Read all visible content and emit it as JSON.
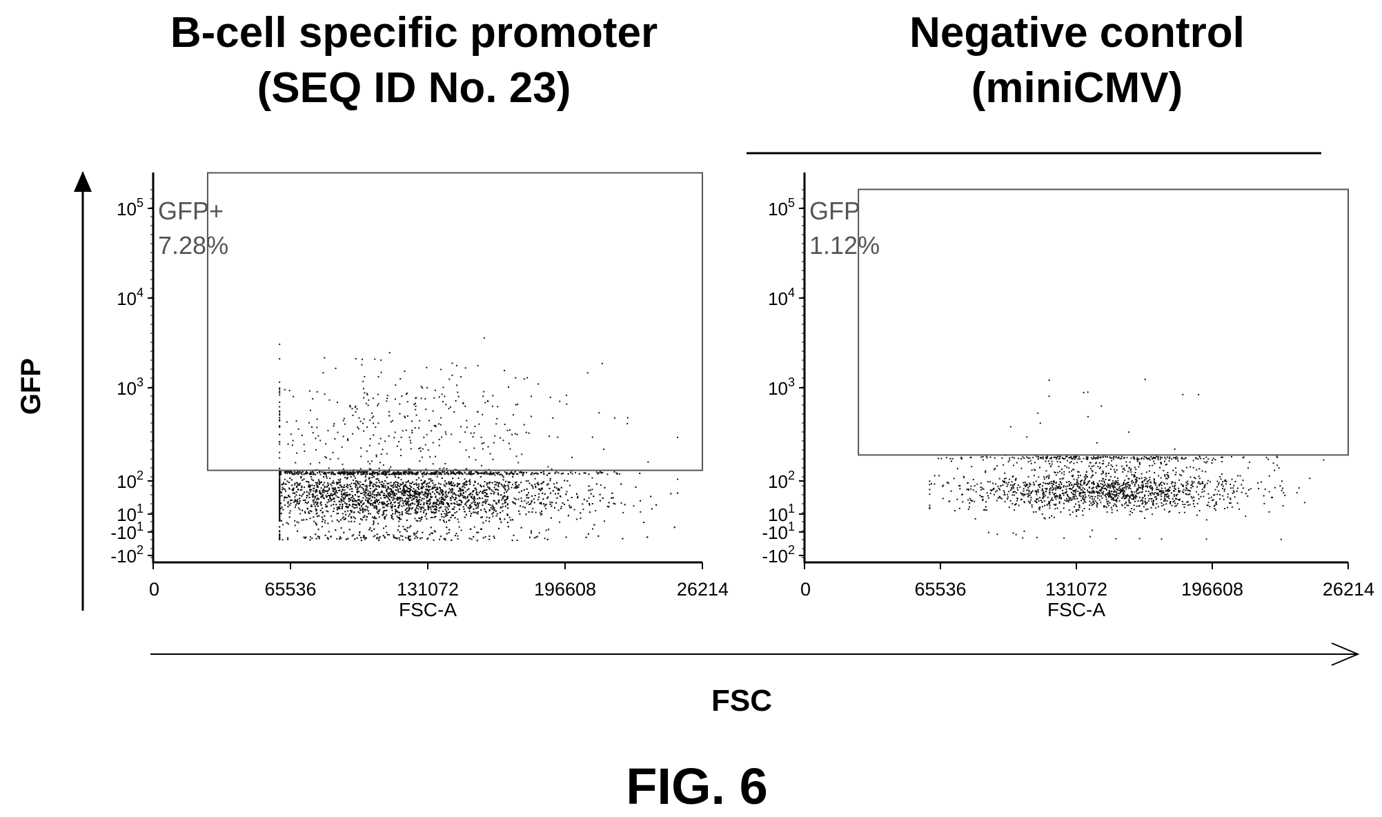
{
  "figure_label": "FIG. 6",
  "shared_axes": {
    "y_label": "GFP",
    "x_label": "FSC"
  },
  "panels": [
    {
      "title_line1": "B-cell specific promoter",
      "title_line2": "(SEQ ID No. 23)",
      "gate_label": "GFP+",
      "gate_percent": "7.28%",
      "x_axis_label": "FSC-A",
      "y_ticks": [
        {
          "base": "10",
          "exp": "5"
        },
        {
          "base": "10",
          "exp": "4"
        },
        {
          "base": "10",
          "exp": "3"
        },
        {
          "base": "10",
          "exp": "2"
        },
        {
          "base": "10",
          "exp": "1"
        },
        {
          "base": "-10",
          "exp": "1"
        },
        {
          "base": "-10",
          "exp": "2"
        }
      ],
      "x_ticks": [
        "0",
        "65536",
        "131072",
        "196608",
        "26214"
      ]
    },
    {
      "title_line1": "Negative control",
      "title_line2": "(miniCMV)",
      "gate_label": "GFP",
      "gate_percent": "1.12%",
      "x_axis_label": "FSC-A",
      "y_ticks": [
        {
          "base": "10",
          "exp": "5"
        },
        {
          "base": "10",
          "exp": "4"
        },
        {
          "base": "10",
          "exp": "3"
        },
        {
          "base": "10",
          "exp": "2"
        },
        {
          "base": "10",
          "exp": "1"
        },
        {
          "base": "-10",
          "exp": "1"
        },
        {
          "base": "-10",
          "exp": "2"
        }
      ],
      "x_ticks": [
        "0",
        "65536",
        "131072",
        "196608",
        "26214"
      ]
    }
  ],
  "chart_data": [
    {
      "type": "scatter",
      "title": "B-cell specific promoter (SEQ ID No. 23)",
      "xlabel": "FSC-A",
      "ylabel": "GFP",
      "xlim": [
        0,
        262144
      ],
      "y_scale": "biexponential",
      "gate": {
        "name": "GFP+",
        "percent": 7.28,
        "x_min": 26000,
        "y_min": 130,
        "x_max": 262144,
        "y_max": 270000
      },
      "population": {
        "events": 5200,
        "fsc_center": 115000,
        "fsc_sd": 42000,
        "gfp_center": 45,
        "gfp_decades_sd": 0.5,
        "gfp_positive_fraction": 0.0728,
        "gfp_positive_peak": 400
      }
    },
    {
      "type": "scatter",
      "title": "Negative control (miniCMV)",
      "xlabel": "FSC-A",
      "ylabel": "GFP",
      "xlim": [
        0,
        262144
      ],
      "y_scale": "biexponential",
      "gate": {
        "name": "GFP",
        "percent": 1.12,
        "x_min": 26000,
        "y_min": 190,
        "x_max": 262144,
        "y_max": 170000
      },
      "population": {
        "events": 1700,
        "fsc_center": 145000,
        "fsc_sd": 33000,
        "gfp_center": 65,
        "gfp_decades_sd": 0.35,
        "gfp_positive_fraction": 0.0112,
        "gfp_positive_peak": 300
      }
    }
  ]
}
